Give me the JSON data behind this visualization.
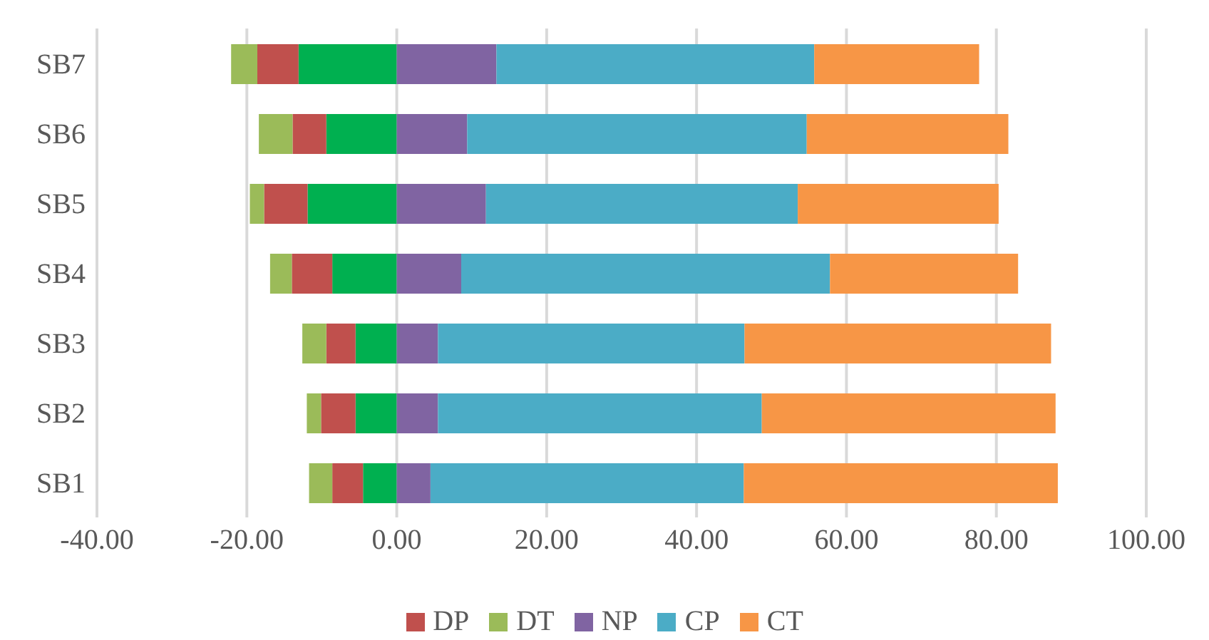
{
  "chart_data": {
    "type": "bar",
    "orientation": "horizontal",
    "stacked": true,
    "categories": [
      "SB7",
      "SB6",
      "SB5",
      "SB4",
      "SB3",
      "SB2",
      "SB1"
    ],
    "series": [
      {
        "color": "#00b050",
        "values": [
          -13.1,
          -9.4,
          -11.9,
          -8.6,
          -5.5,
          -5.5,
          -4.5
        ]
      },
      {
        "name": "DP",
        "color": "#c0504d",
        "values": [
          -5.5,
          -4.5,
          -5.8,
          -5.4,
          -3.9,
          -4.6,
          -4.1
        ]
      },
      {
        "name": "DT",
        "color": "#9bbb59",
        "values": [
          -3.5,
          -4.5,
          -1.9,
          -2.9,
          -3.2,
          -1.9,
          -3.1
        ]
      },
      {
        "name": "NP",
        "color": "#8064a2",
        "values": [
          13.3,
          9.4,
          11.9,
          8.6,
          5.5,
          5.5,
          4.5
        ]
      },
      {
        "name": "CP",
        "color": "#4bacc6",
        "values": [
          42.4,
          45.3,
          41.6,
          49.2,
          40.9,
          43.2,
          41.8
        ]
      },
      {
        "name": "CT",
        "color": "#f79646",
        "values": [
          22.0,
          26.9,
          26.8,
          25.1,
          40.9,
          39.2,
          41.9
        ]
      }
    ],
    "xlim": [
      -40,
      100
    ],
    "xticks": [
      {
        "value": -40,
        "label": "-40.00"
      },
      {
        "value": -20,
        "label": "-20.00"
      },
      {
        "value": 0,
        "label": "0.00"
      },
      {
        "value": 20,
        "label": "20.00"
      },
      {
        "value": 40,
        "label": "40.00"
      },
      {
        "value": 60,
        "label": "60.00"
      },
      {
        "value": 80,
        "label": "80.00"
      },
      {
        "value": 100,
        "label": "100.00"
      }
    ],
    "grid": "x",
    "legend": "bottom"
  }
}
